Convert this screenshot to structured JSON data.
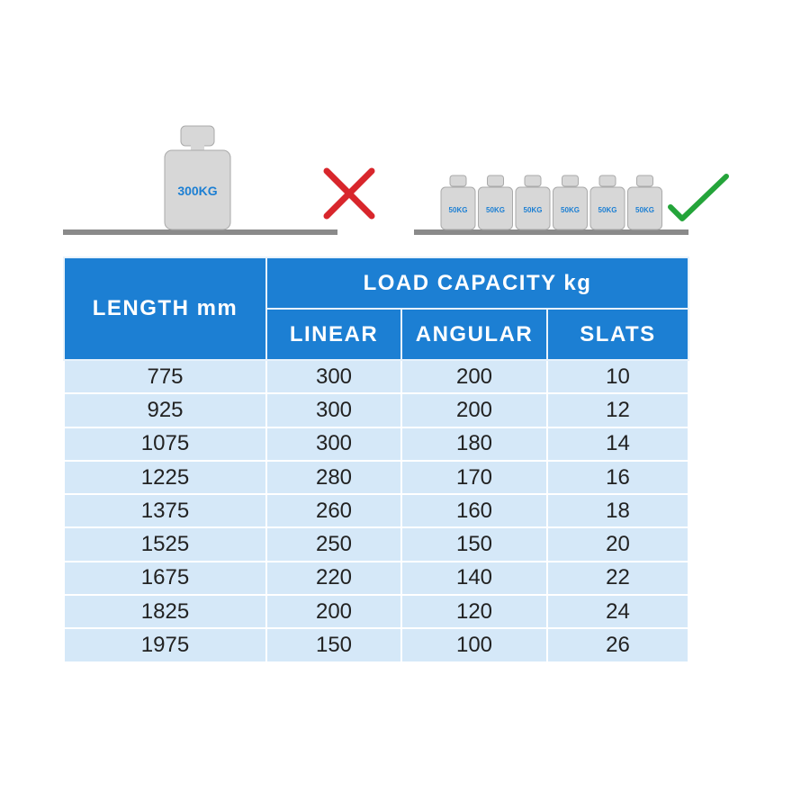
{
  "illustration": {
    "bad_weight": "300KG",
    "good_weights": [
      "50KG",
      "50KG",
      "50KG",
      "50KG",
      "50KG",
      "50KG"
    ]
  },
  "table": {
    "headers": {
      "length": "LENGTH mm",
      "group": "LOAD CAPACITY kg",
      "columns": [
        "LINEAR",
        "ANGULAR",
        "SLATS"
      ]
    },
    "rows": [
      [
        775,
        300,
        200,
        10
      ],
      [
        925,
        300,
        200,
        12
      ],
      [
        1075,
        300,
        180,
        14
      ],
      [
        1225,
        280,
        170,
        16
      ],
      [
        1375,
        260,
        160,
        18
      ],
      [
        1525,
        250,
        150,
        20
      ],
      [
        1675,
        220,
        140,
        22
      ],
      [
        1825,
        200,
        120,
        24
      ],
      [
        1975,
        150,
        100,
        26
      ]
    ]
  }
}
